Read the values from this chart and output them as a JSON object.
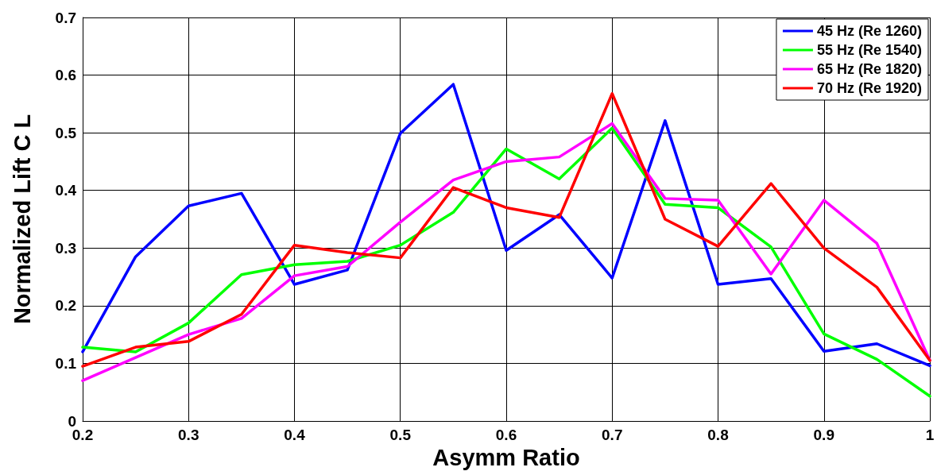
{
  "chart_data": {
    "type": "line",
    "xlabel": "Asymm Ratio",
    "ylabel": "Normalized Lift C L",
    "x": [
      0.2,
      0.25,
      0.3,
      0.35,
      0.4,
      0.45,
      0.5,
      0.55,
      0.6,
      0.65,
      0.7,
      0.75,
      0.8,
      0.85,
      0.9,
      0.95,
      1.0
    ],
    "series": [
      {
        "name": "45 Hz (Re 1260)",
        "color": "#0000ff",
        "values": [
          0.12,
          0.285,
          0.373,
          0.395,
          0.237,
          0.262,
          0.499,
          0.584,
          0.296,
          0.358,
          0.248,
          0.521,
          0.237,
          0.247,
          0.121,
          0.134,
          0.096
        ]
      },
      {
        "name": "55 Hz (Re 1540)",
        "color": "#00ff00",
        "values": [
          0.128,
          0.12,
          0.17,
          0.254,
          0.271,
          0.277,
          0.305,
          0.362,
          0.472,
          0.42,
          0.508,
          0.376,
          0.37,
          0.302,
          0.151,
          0.107,
          0.043
        ]
      },
      {
        "name": "65 Hz (Re 1820)",
        "color": "#ff00ff",
        "values": [
          0.07,
          0.11,
          0.15,
          0.178,
          0.252,
          0.268,
          0.345,
          0.418,
          0.45,
          0.458,
          0.516,
          0.386,
          0.383,
          0.255,
          0.383,
          0.308,
          0.105
        ]
      },
      {
        "name": "70 Hz (Re 1920)",
        "color": "#ff0000",
        "values": [
          0.095,
          0.128,
          0.138,
          0.185,
          0.305,
          0.292,
          0.283,
          0.405,
          0.37,
          0.353,
          0.568,
          0.35,
          0.303,
          0.412,
          0.3,
          0.232,
          0.105
        ]
      }
    ],
    "xlim": [
      0.2,
      1
    ],
    "xticks": [
      0.2,
      0.3,
      0.4,
      0.5,
      0.6,
      0.7,
      0.8,
      0.9,
      1
    ],
    "ylim": [
      0,
      0.7
    ],
    "yticks": [
      0,
      0.1,
      0.2,
      0.3,
      0.4,
      0.5,
      0.6,
      0.7
    ],
    "grid": true,
    "legend": "top right",
    "marker": "none",
    "line_style": "solid"
  }
}
